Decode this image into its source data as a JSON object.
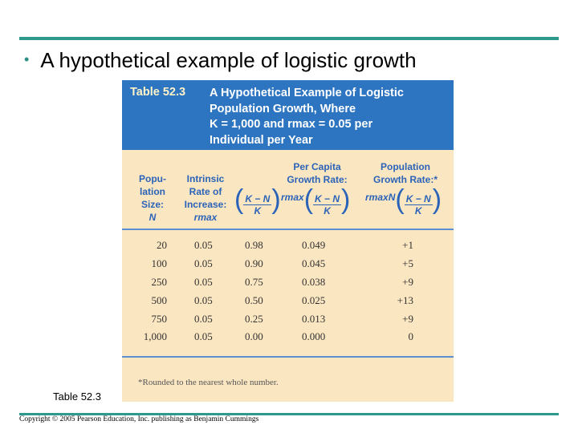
{
  "slide": {
    "bullet": "•",
    "title": "A hypothetical example of logistic growth",
    "caption": "Table 52.3",
    "copyright": "Copyright © 2005 Pearson Education, Inc. publishing as Benjamin Cummings"
  },
  "table": {
    "label": "Table 52.3",
    "title_lines": [
      "A Hypothetical Example of Logistic",
      "Population Growth, Where",
      "K = 1,000 and rmax = 0.05 per",
      "Individual per Year"
    ],
    "columns": {
      "col1": [
        "Popu-",
        "lation",
        "Size:",
        "N"
      ],
      "col2": [
        "Intrinsic",
        "Rate of",
        "Increase:",
        "rmax"
      ],
      "col4_top": [
        "Per Capita",
        "Growth Rate:"
      ],
      "col5_top": [
        "Population",
        "Growth Rate:*"
      ],
      "frac_num": "K − N",
      "frac_den": "K",
      "rmax": "rmax",
      "rmaxN": "rmaxN"
    },
    "rows": [
      [
        "20",
        "0.05",
        "0.98",
        "0.049",
        "+1"
      ],
      [
        "100",
        "0.05",
        "0.90",
        "0.045",
        "+5"
      ],
      [
        "250",
        "0.05",
        "0.75",
        "0.038",
        "+9"
      ],
      [
        "500",
        "0.05",
        "0.50",
        "0.025",
        "+13"
      ],
      [
        "750",
        "0.05",
        "0.25",
        "0.013",
        "+9"
      ],
      [
        "1,000",
        "0.05",
        "0.00",
        "0.000",
        "0"
      ]
    ],
    "footnote": "*Rounded to the nearest whole number."
  }
}
